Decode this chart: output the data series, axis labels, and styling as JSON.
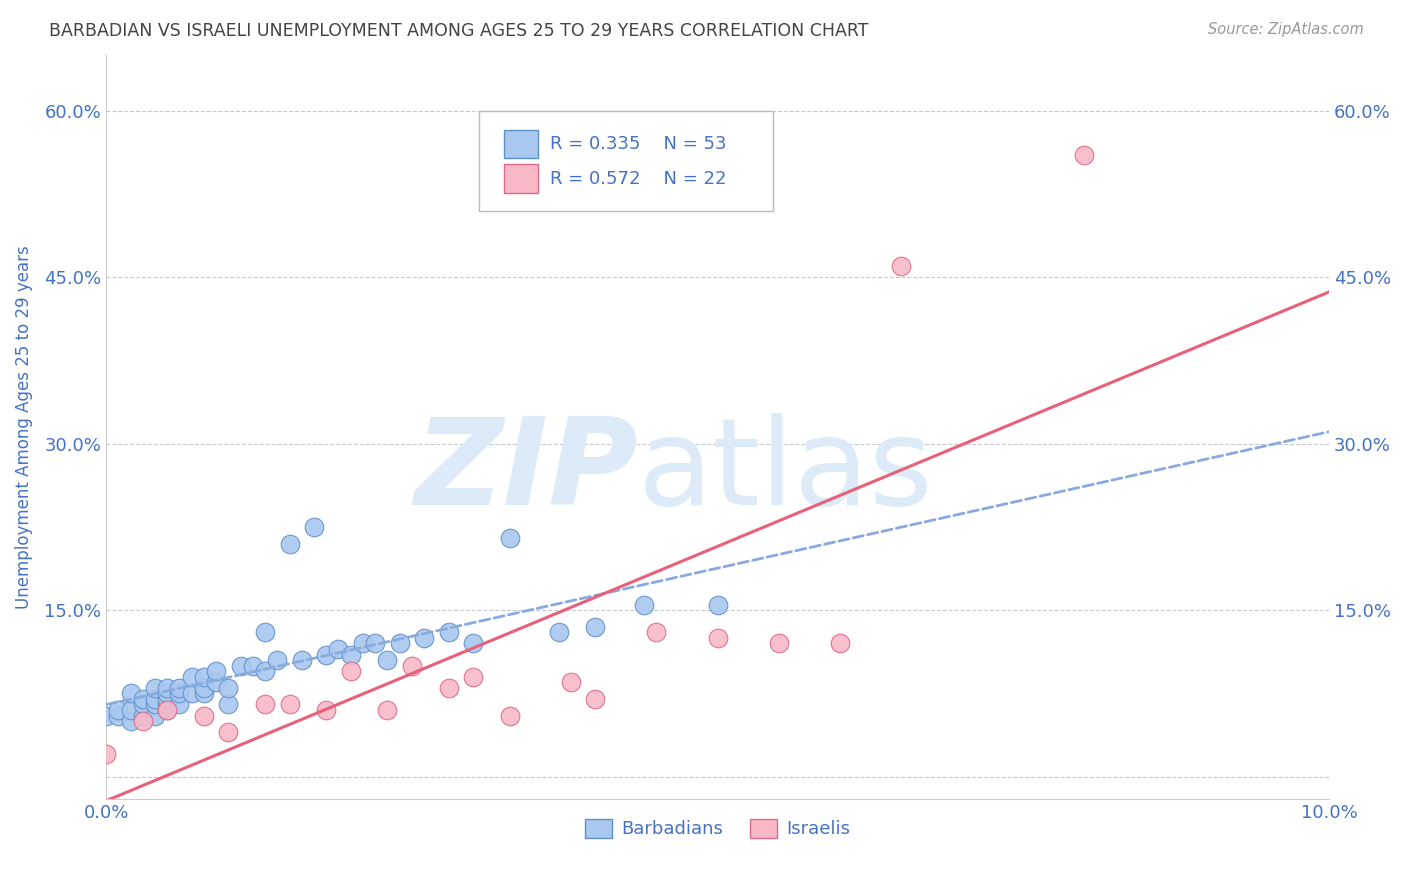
{
  "title": "BARBADIAN VS ISRAELI UNEMPLOYMENT AMONG AGES 25 TO 29 YEARS CORRELATION CHART",
  "source": "Source: ZipAtlas.com",
  "ylabel": "Unemployment Among Ages 25 to 29 years",
  "xlim": [
    0.0,
    0.1
  ],
  "ylim": [
    -0.02,
    0.65
  ],
  "xticks": [
    0.0,
    0.02,
    0.04,
    0.06,
    0.08,
    0.1
  ],
  "xtick_labels": [
    "0.0%",
    "",
    "",
    "",
    "",
    "10.0%"
  ],
  "yticks": [
    0.0,
    0.15,
    0.3,
    0.45,
    0.6
  ],
  "ytick_labels": [
    "",
    "15.0%",
    "30.0%",
    "45.0%",
    "60.0%"
  ],
  "background_color": "#ffffff",
  "grid_color": "#c8c8d0",
  "title_color": "#444444",
  "axis_label_color": "#4472c4",
  "watermark_zip": "ZIP",
  "watermark_atlas": "atlas",
  "watermark_color": "#ddeaf8",
  "barbadians_color": "#a8c8f0",
  "barbadians_edge_color": "#6090c8",
  "israelis_color": "#f8b8c8",
  "israelis_edge_color": "#e06888",
  "barbadians_line_color": "#88aade",
  "israelis_line_color": "#e8607a",
  "legend_R_barbadians": "R = 0.335",
  "legend_N_barbadians": "N = 53",
  "legend_R_israelis": "R = 0.572",
  "legend_N_israelis": "N = 22",
  "barbadians_x": [
    0.0,
    0.001,
    0.001,
    0.002,
    0.002,
    0.002,
    0.003,
    0.003,
    0.003,
    0.004,
    0.004,
    0.004,
    0.004,
    0.005,
    0.005,
    0.005,
    0.005,
    0.005,
    0.006,
    0.006,
    0.006,
    0.007,
    0.007,
    0.008,
    0.008,
    0.008,
    0.009,
    0.009,
    0.01,
    0.01,
    0.011,
    0.012,
    0.013,
    0.013,
    0.014,
    0.015,
    0.016,
    0.017,
    0.018,
    0.019,
    0.02,
    0.021,
    0.022,
    0.023,
    0.024,
    0.026,
    0.028,
    0.03,
    0.033,
    0.037,
    0.04,
    0.044,
    0.05
  ],
  "barbadians_y": [
    0.055,
    0.055,
    0.06,
    0.05,
    0.06,
    0.075,
    0.055,
    0.065,
    0.07,
    0.055,
    0.065,
    0.07,
    0.08,
    0.06,
    0.065,
    0.07,
    0.075,
    0.08,
    0.065,
    0.075,
    0.08,
    0.075,
    0.09,
    0.075,
    0.08,
    0.09,
    0.085,
    0.095,
    0.065,
    0.08,
    0.1,
    0.1,
    0.095,
    0.13,
    0.105,
    0.21,
    0.105,
    0.225,
    0.11,
    0.115,
    0.11,
    0.12,
    0.12,
    0.105,
    0.12,
    0.125,
    0.13,
    0.12,
    0.215,
    0.13,
    0.135,
    0.155,
    0.155
  ],
  "israelis_x": [
    0.0,
    0.003,
    0.005,
    0.008,
    0.01,
    0.013,
    0.015,
    0.018,
    0.02,
    0.023,
    0.025,
    0.028,
    0.03,
    0.033,
    0.038,
    0.04,
    0.045,
    0.05,
    0.055,
    0.06,
    0.065,
    0.08
  ],
  "israelis_y": [
    0.02,
    0.05,
    0.06,
    0.055,
    0.04,
    0.065,
    0.065,
    0.06,
    0.095,
    0.06,
    0.1,
    0.08,
    0.09,
    0.055,
    0.085,
    0.07,
    0.13,
    0.125,
    0.12,
    0.12,
    0.46,
    0.56
  ]
}
